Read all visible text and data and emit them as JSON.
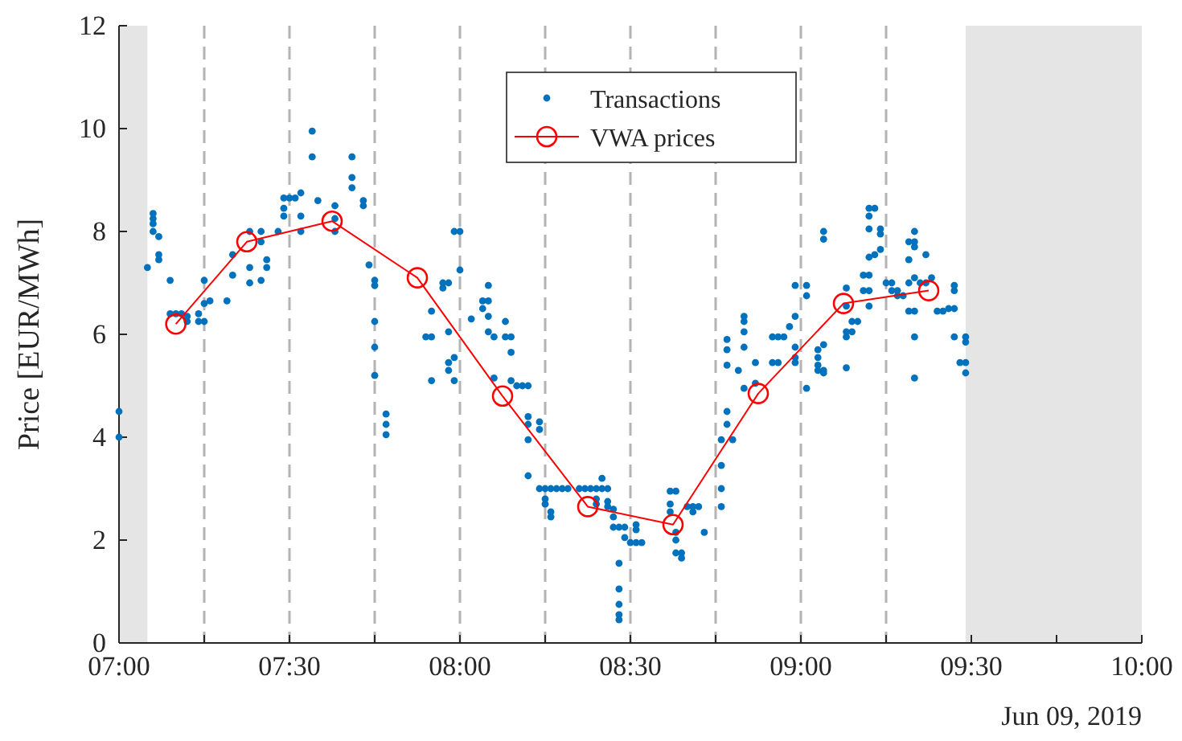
{
  "chart_data": {
    "type": "scatter",
    "ylabel": "Price [EUR/MWh]",
    "xlim": [
      "2019-06-09T07:00",
      "2019-06-09T10:00"
    ],
    "xticks": [
      {
        "value": "2019-06-09T07:00",
        "label": "07:00"
      },
      {
        "value": "2019-06-09T07:15",
        "label": null
      },
      {
        "value": "2019-06-09T07:30",
        "label": "07:30"
      },
      {
        "value": "2019-06-09T07:45",
        "label": null
      },
      {
        "value": "2019-06-09T08:00",
        "label": "08:00"
      },
      {
        "value": "2019-06-09T08:15",
        "label": null
      },
      {
        "value": "2019-06-09T08:30",
        "label": "08:30"
      },
      {
        "value": "2019-06-09T08:45",
        "label": null
      },
      {
        "value": "2019-06-09T09:00",
        "label": "09:00"
      },
      {
        "value": "2019-06-09T09:15",
        "label": null
      },
      {
        "value": "2019-06-09T09:30",
        "label": "09:30"
      },
      {
        "value": "2019-06-09T09:45",
        "label": null
      },
      {
        "value": "2019-06-09T10:00",
        "label": "10:00"
      }
    ],
    "ylim": [
      0,
      12
    ],
    "yticks": [
      0,
      2,
      4,
      6,
      8,
      10,
      12
    ],
    "legend": "top",
    "annotations": [
      "Jun 09, 2019"
    ],
    "bands": [
      {
        "axis": "x",
        "from": "2019-06-09T07:00",
        "to": "2019-06-09T07:05",
        "color": "#e5e5e5"
      },
      {
        "axis": "x",
        "from": "2019-06-09T09:29",
        "to": "2019-06-09T10:00",
        "color": "#e5e5e5"
      }
    ],
    "ref_lines": [
      {
        "axis": "x",
        "value": "2019-06-09T07:15",
        "color": "#b3b3b3",
        "line_style": "dashed"
      },
      {
        "axis": "x",
        "value": "2019-06-09T07:30",
        "color": "#b3b3b3",
        "line_style": "dashed"
      },
      {
        "axis": "x",
        "value": "2019-06-09T07:45",
        "color": "#b3b3b3",
        "line_style": "dashed"
      },
      {
        "axis": "x",
        "value": "2019-06-09T08:00",
        "color": "#b3b3b3",
        "line_style": "dashed"
      },
      {
        "axis": "x",
        "value": "2019-06-09T08:15",
        "color": "#b3b3b3",
        "line_style": "dashed"
      },
      {
        "axis": "x",
        "value": "2019-06-09T08:30",
        "color": "#b3b3b3",
        "line_style": "dashed"
      },
      {
        "axis": "x",
        "value": "2019-06-09T08:45",
        "color": "#b3b3b3",
        "line_style": "dashed"
      },
      {
        "axis": "x",
        "value": "2019-06-09T09:00",
        "color": "#b3b3b3",
        "line_style": "dashed"
      },
      {
        "axis": "x",
        "value": "2019-06-09T09:15",
        "color": "#b3b3b3",
        "line_style": "dashed"
      }
    ],
    "series": [
      {
        "name": "Transactions",
        "marker": "circle",
        "color": "#0072bd",
        "x": [
          "2019-06-09T07:00",
          "2019-06-09T07:00",
          "2019-06-09T07:06",
          "2019-06-09T07:06",
          "2019-06-09T07:06",
          "2019-06-09T07:06",
          "2019-06-09T07:07",
          "2019-06-09T07:05",
          "2019-06-09T07:07",
          "2019-06-09T07:07",
          "2019-06-09T07:09",
          "2019-06-09T07:09",
          "2019-06-09T07:10",
          "2019-06-09T07:11",
          "2019-06-09T07:12",
          "2019-06-09T07:12",
          "2019-06-09T07:14",
          "2019-06-09T07:14",
          "2019-06-09T07:15",
          "2019-06-09T07:15",
          "2019-06-09T07:15",
          "2019-06-09T07:16",
          "2019-06-09T07:19",
          "2019-06-09T07:20",
          "2019-06-09T07:20",
          "2019-06-09T07:23",
          "2019-06-09T07:23",
          "2019-06-09T07:23",
          "2019-06-09T07:25",
          "2019-06-09T07:25",
          "2019-06-09T07:25",
          "2019-06-09T07:26",
          "2019-06-09T07:26",
          "2019-06-09T07:28",
          "2019-06-09T07:29",
          "2019-06-09T07:29",
          "2019-06-09T07:29",
          "2019-06-09T07:30",
          "2019-06-09T07:31",
          "2019-06-09T07:32",
          "2019-06-09T07:32",
          "2019-06-09T07:32",
          "2019-06-09T07:34",
          "2019-06-09T07:34",
          "2019-06-09T07:35",
          "2019-06-09T07:38",
          "2019-06-09T07:38",
          "2019-06-09T07:38",
          "2019-06-09T07:41",
          "2019-06-09T07:41",
          "2019-06-09T07:41",
          "2019-06-09T07:43",
          "2019-06-09T07:43",
          "2019-06-09T07:44",
          "2019-06-09T07:45",
          "2019-06-09T07:45",
          "2019-06-09T07:45",
          "2019-06-09T07:45",
          "2019-06-09T07:45",
          "2019-06-09T07:47",
          "2019-06-09T07:47",
          "2019-06-09T07:47",
          "2019-06-09T07:59",
          "2019-06-09T08:00",
          "2019-06-09T08:00",
          "2019-06-09T07:55",
          "2019-06-09T07:54",
          "2019-06-09T07:55",
          "2019-06-09T07:55",
          "2019-06-09T07:57",
          "2019-06-09T07:58",
          "2019-06-09T07:57",
          "2019-06-09T07:58",
          "2019-06-09T07:58",
          "2019-06-09T07:58",
          "2019-06-09T07:59",
          "2019-06-09T07:59",
          "2019-06-09T08:02",
          "2019-06-09T08:05",
          "2019-06-09T08:04",
          "2019-06-09T08:05",
          "2019-06-09T08:04",
          "2019-06-09T08:05",
          "2019-06-09T08:05",
          "2019-06-09T08:06",
          "2019-06-09T08:06",
          "2019-06-09T08:08",
          "2019-06-09T08:08",
          "2019-06-09T08:09",
          "2019-06-09T08:09",
          "2019-06-09T08:09",
          "2019-06-09T08:10",
          "2019-06-09T08:11",
          "2019-06-09T08:12",
          "2019-06-09T08:12",
          "2019-06-09T08:12",
          "2019-06-09T08:12",
          "2019-06-09T08:14",
          "2019-06-09T08:14",
          "2019-06-09T08:12",
          "2019-06-09T08:14",
          "2019-06-09T08:15",
          "2019-06-09T08:16",
          "2019-06-09T08:17",
          "2019-06-09T08:18",
          "2019-06-09T08:19",
          "2019-06-09T08:15",
          "2019-06-09T08:15",
          "2019-06-09T08:16",
          "2019-06-09T08:16",
          "2019-06-09T08:21",
          "2019-06-09T08:22",
          "2019-06-09T08:23",
          "2019-06-09T08:24",
          "2019-06-09T08:25",
          "2019-06-09T08:26",
          "2019-06-09T08:25",
          "2019-06-09T08:24",
          "2019-06-09T08:24",
          "2019-06-09T08:26",
          "2019-06-09T08:26",
          "2019-06-09T08:27",
          "2019-06-09T08:27",
          "2019-06-09T08:27",
          "2019-06-09T08:28",
          "2019-06-09T08:29",
          "2019-06-09T08:29",
          "2019-06-09T08:30",
          "2019-06-09T08:31",
          "2019-06-09T08:32",
          "2019-06-09T08:31",
          "2019-06-09T08:31",
          "2019-06-09T08:28",
          "2019-06-09T08:28",
          "2019-06-09T08:28",
          "2019-06-09T08:28",
          "2019-06-09T08:28",
          "2019-06-09T08:37",
          "2019-06-09T08:38",
          "2019-06-09T08:37",
          "2019-06-09T08:37",
          "2019-06-09T08:38",
          "2019-06-09T08:38",
          "2019-06-09T08:38",
          "2019-06-09T08:39",
          "2019-06-09T08:39",
          "2019-06-09T08:40",
          "2019-06-09T08:41",
          "2019-06-09T08:42",
          "2019-06-09T08:41",
          "2019-06-09T08:43",
          "2019-06-09T08:46",
          "2019-06-09T08:46",
          "2019-06-09T08:46",
          "2019-06-09T08:46",
          "2019-06-09T08:47",
          "2019-06-09T08:47",
          "2019-06-09T08:48",
          "2019-06-09T08:47",
          "2019-06-09T08:47",
          "2019-06-09T08:47",
          "2019-06-09T08:49",
          "2019-06-09T08:50",
          "2019-06-09T08:50",
          "2019-06-09T08:50",
          "2019-06-09T08:50",
          "2019-06-09T08:50",
          "2019-06-09T08:52",
          "2019-06-09T08:52",
          "2019-06-09T08:55",
          "2019-06-09T08:56",
          "2019-06-09T08:55",
          "2019-06-09T08:56",
          "2019-06-09T08:57",
          "2019-06-09T08:58",
          "2019-06-09T08:59",
          "2019-06-09T08:59",
          "2019-06-09T08:59",
          "2019-06-09T08:59",
          "2019-06-09T08:59",
          "2019-06-09T09:01",
          "2019-06-09T09:01",
          "2019-06-09T09:01",
          "2019-06-09T09:03",
          "2019-06-09T09:03",
          "2019-06-09T09:03",
          "2019-06-09T09:04",
          "2019-06-09T09:04",
          "2019-06-09T09:03",
          "2019-06-09T09:04",
          "2019-06-09T09:04",
          "2019-06-09T09:04",
          "2019-06-09T09:08",
          "2019-06-09T09:08",
          "2019-06-09T09:08",
          "2019-06-09T09:08",
          "2019-06-09T09:09",
          "2019-06-09T09:09",
          "2019-06-09T09:10",
          "2019-06-09T09:08",
          "2019-06-09T09:11",
          "2019-06-09T09:12",
          "2019-06-09T09:11",
          "2019-06-09T09:12",
          "2019-06-09T09:12",
          "2019-06-09T09:12",
          "2019-06-09T09:13",
          "2019-06-09T09:12",
          "2019-06-09T09:12",
          "2019-06-09T09:14",
          "2019-06-09T09:14",
          "2019-06-09T09:14",
          "2019-06-09T09:13",
          "2019-06-09T09:12",
          "2019-06-09T09:15",
          "2019-06-09T09:16",
          "2019-06-09T09:16",
          "2019-06-09T09:17",
          "2019-06-09T09:17",
          "2019-06-09T09:18",
          "2019-06-09T09:19",
          "2019-06-09T09:20",
          "2019-06-09T09:21",
          "2019-06-09T09:22",
          "2019-06-09T09:23",
          "2019-06-09T09:20",
          "2019-06-09T09:20",
          "2019-06-09T09:19",
          "2019-06-09T09:20",
          "2019-06-09T09:19",
          "2019-06-09T09:22",
          "2019-06-09T09:19",
          "2019-06-09T09:20",
          "2019-06-09T09:20",
          "2019-06-09T09:20",
          "2019-06-09T09:24",
          "2019-06-09T09:25",
          "2019-06-09T09:26",
          "2019-06-09T09:27",
          "2019-06-09T09:27",
          "2019-06-09T09:27",
          "2019-06-09T09:27",
          "2019-06-09T09:28",
          "2019-06-09T09:29",
          "2019-06-09T09:29",
          "2019-06-09T09:29",
          "2019-06-09T09:29"
        ],
        "values": [
          4.5,
          4.0,
          8.35,
          8.25,
          8.15,
          8.0,
          7.9,
          7.3,
          7.55,
          7.45,
          7.05,
          6.4,
          6.4,
          6.4,
          6.35,
          6.25,
          6.4,
          6.25,
          7.05,
          6.6,
          6.25,
          6.65,
          6.65,
          7.55,
          7.15,
          8.0,
          7.3,
          7.0,
          8.0,
          7.8,
          7.05,
          7.45,
          7.3,
          8.0,
          8.65,
          8.45,
          8.3,
          8.65,
          8.65,
          8.75,
          8.3,
          8.0,
          9.95,
          9.45,
          8.6,
          8.5,
          8.25,
          8.0,
          9.45,
          9.05,
          8.85,
          8.6,
          8.5,
          7.35,
          7.05,
          6.95,
          6.25,
          5.75,
          5.2,
          4.45,
          4.25,
          4.05,
          8.0,
          8.0,
          7.25,
          6.45,
          5.95,
          5.95,
          5.1,
          7.0,
          7.0,
          6.9,
          6.05,
          5.45,
          5.3,
          5.55,
          5.1,
          6.3,
          6.95,
          6.65,
          6.65,
          6.5,
          6.35,
          6.05,
          5.95,
          5.15,
          6.25,
          5.95,
          5.95,
          5.65,
          5.1,
          5.0,
          5.0,
          5.0,
          4.4,
          4.25,
          3.95,
          4.3,
          4.15,
          3.25,
          3.0,
          3.0,
          3.0,
          3.0,
          3.0,
          3.0,
          2.8,
          2.7,
          2.55,
          2.45,
          3.0,
          3.0,
          3.0,
          3.0,
          3.0,
          3.0,
          3.2,
          2.8,
          2.7,
          2.75,
          2.65,
          2.6,
          2.45,
          2.25,
          2.25,
          2.25,
          2.05,
          1.95,
          1.95,
          1.95,
          2.3,
          2.2,
          1.55,
          1.05,
          0.75,
          0.55,
          0.45,
          2.95,
          2.95,
          2.7,
          2.55,
          2.15,
          2.0,
          1.75,
          1.75,
          1.65,
          2.65,
          2.65,
          2.65,
          2.55,
          2.15,
          3.95,
          3.45,
          3.0,
          2.65,
          4.5,
          4.25,
          3.95,
          5.9,
          5.7,
          5.4,
          5.3,
          6.35,
          6.25,
          6.05,
          5.75,
          4.95,
          5.05,
          5.45,
          5.45,
          5.45,
          5.95,
          5.95,
          5.95,
          6.15,
          6.35,
          5.75,
          5.55,
          5.45,
          6.95,
          6.95,
          6.75,
          4.95,
          5.7,
          5.55,
          5.4,
          5.8,
          5.25,
          5.3,
          5.3,
          8.0,
          7.85,
          6.9,
          6.55,
          6.05,
          5.95,
          6.05,
          6.25,
          6.25,
          5.35,
          7.15,
          7.15,
          6.85,
          6.85,
          6.55,
          8.45,
          8.45,
          8.3,
          8.05,
          8.05,
          7.95,
          7.65,
          7.55,
          7.5,
          7.0,
          7.0,
          6.85,
          6.85,
          6.75,
          6.75,
          7.0,
          7.1,
          7.0,
          7.0,
          7.1,
          7.8,
          7.7,
          7.8,
          8.0,
          7.45,
          7.55,
          6.45,
          6.45,
          5.95,
          5.15,
          6.45,
          6.45,
          6.5,
          6.5,
          6.95,
          6.85,
          5.95,
          5.45,
          5.45,
          5.95,
          5.85,
          5.25
        ]
      },
      {
        "name": "VWA prices",
        "type": "line",
        "marker": "circle",
        "line_style": "solid",
        "color": "#ff0000",
        "x": [
          "2019-06-09T07:10",
          "2019-06-09T07:22:30",
          "2019-06-09T07:37:30",
          "2019-06-09T07:52:30",
          "2019-06-09T08:07:30",
          "2019-06-09T08:22:30",
          "2019-06-09T08:37:30",
          "2019-06-09T08:52:30",
          "2019-06-09T09:07:30",
          "2019-06-09T09:22:30"
        ],
        "values": [
          6.2,
          7.8,
          8.2,
          7.1,
          4.8,
          2.65,
          2.3,
          4.85,
          6.6,
          6.85
        ]
      }
    ]
  }
}
